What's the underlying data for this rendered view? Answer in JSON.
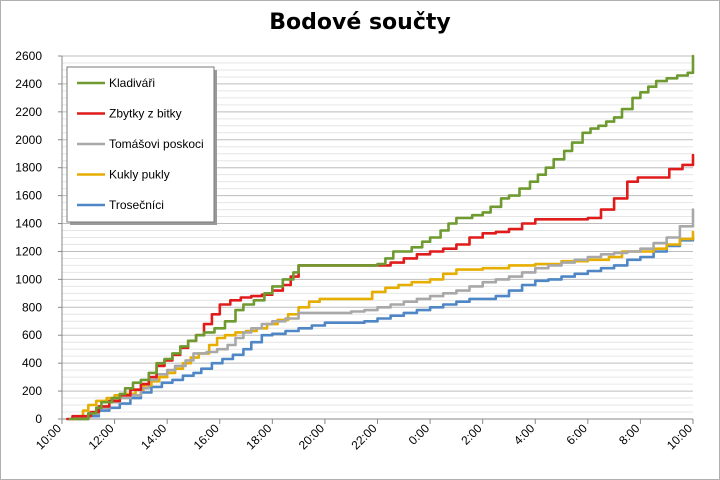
{
  "chart_data": {
    "type": "line",
    "title": "Bodové součty",
    "xlabel": "",
    "ylabel": "",
    "ylim": [
      0,
      2600
    ],
    "yticks": [
      0,
      200,
      400,
      600,
      800,
      1000,
      1200,
      1400,
      1600,
      1800,
      2000,
      2200,
      2400,
      2600
    ],
    "xlim_hours": [
      10,
      34
    ],
    "xticks": [
      "10:00",
      "12:00",
      "14:00",
      "16:00",
      "18:00",
      "20:00",
      "22:00",
      "0:00",
      "2:00",
      "4:00",
      "6:00",
      "8:00",
      "10:00"
    ],
    "grid": true,
    "legend_position": "top-left",
    "series": [
      {
        "name": "Kladiváři",
        "color": "#6e9a30",
        "points": [
          [
            10.3,
            0
          ],
          [
            10.9,
            0
          ],
          [
            11.0,
            40
          ],
          [
            11.3,
            80
          ],
          [
            11.5,
            120
          ],
          [
            11.9,
            150
          ],
          [
            12.2,
            180
          ],
          [
            12.4,
            220
          ],
          [
            12.7,
            260
          ],
          [
            13.0,
            280
          ],
          [
            13.3,
            330
          ],
          [
            13.6,
            400
          ],
          [
            13.9,
            430
          ],
          [
            14.2,
            470
          ],
          [
            14.5,
            520
          ],
          [
            14.8,
            560
          ],
          [
            15.1,
            600
          ],
          [
            15.4,
            620
          ],
          [
            15.8,
            650
          ],
          [
            16.2,
            700
          ],
          [
            16.6,
            780
          ],
          [
            16.9,
            820
          ],
          [
            17.3,
            850
          ],
          [
            17.7,
            900
          ],
          [
            18.0,
            950
          ],
          [
            18.4,
            1000
          ],
          [
            18.8,
            1050
          ],
          [
            19.0,
            1100
          ],
          [
            20.5,
            1100
          ],
          [
            22.0,
            1110
          ],
          [
            22.3,
            1150
          ],
          [
            22.6,
            1200
          ],
          [
            23.3,
            1230
          ],
          [
            23.7,
            1270
          ],
          [
            24.0,
            1300
          ],
          [
            24.4,
            1350
          ],
          [
            24.7,
            1400
          ],
          [
            25.0,
            1440
          ],
          [
            25.6,
            1460
          ],
          [
            26.0,
            1480
          ],
          [
            26.3,
            1520
          ],
          [
            26.7,
            1580
          ],
          [
            27.0,
            1600
          ],
          [
            27.4,
            1650
          ],
          [
            27.8,
            1700
          ],
          [
            28.1,
            1750
          ],
          [
            28.4,
            1800
          ],
          [
            28.7,
            1860
          ],
          [
            29.1,
            1920
          ],
          [
            29.4,
            1980
          ],
          [
            29.8,
            2050
          ],
          [
            30.1,
            2080
          ],
          [
            30.4,
            2100
          ],
          [
            30.7,
            2130
          ],
          [
            31.0,
            2160
          ],
          [
            31.3,
            2220
          ],
          [
            31.7,
            2300
          ],
          [
            32.0,
            2340
          ],
          [
            32.3,
            2380
          ],
          [
            32.6,
            2420
          ],
          [
            33.0,
            2440
          ],
          [
            33.4,
            2460
          ],
          [
            33.8,
            2480
          ],
          [
            34.0,
            2600
          ]
        ]
      },
      {
        "name": "Zbytky z bitky",
        "color": "#e01b1b",
        "points": [
          [
            10.2,
            0
          ],
          [
            10.4,
            20
          ],
          [
            10.8,
            20
          ],
          [
            11.1,
            50
          ],
          [
            11.4,
            90
          ],
          [
            11.8,
            130
          ],
          [
            12.2,
            170
          ],
          [
            12.6,
            210
          ],
          [
            13.0,
            250
          ],
          [
            13.3,
            300
          ],
          [
            13.6,
            380
          ],
          [
            13.9,
            420
          ],
          [
            14.2,
            460
          ],
          [
            14.5,
            510
          ],
          [
            14.8,
            560
          ],
          [
            15.1,
            600
          ],
          [
            15.4,
            680
          ],
          [
            15.7,
            750
          ],
          [
            16.0,
            820
          ],
          [
            16.4,
            850
          ],
          [
            16.8,
            870
          ],
          [
            17.2,
            880
          ],
          [
            17.6,
            890
          ],
          [
            18.0,
            920
          ],
          [
            18.4,
            960
          ],
          [
            18.7,
            1020
          ],
          [
            19.0,
            1100
          ],
          [
            22.0,
            1100
          ],
          [
            22.5,
            1120
          ],
          [
            23.0,
            1150
          ],
          [
            23.5,
            1180
          ],
          [
            24.0,
            1200
          ],
          [
            24.5,
            1220
          ],
          [
            25.0,
            1250
          ],
          [
            25.5,
            1300
          ],
          [
            26.0,
            1330
          ],
          [
            26.5,
            1340
          ],
          [
            27.0,
            1360
          ],
          [
            27.5,
            1400
          ],
          [
            28.0,
            1430
          ],
          [
            30.0,
            1440
          ],
          [
            30.5,
            1500
          ],
          [
            31.0,
            1580
          ],
          [
            31.5,
            1700
          ],
          [
            31.9,
            1730
          ],
          [
            32.8,
            1730
          ],
          [
            33.1,
            1790
          ],
          [
            33.6,
            1820
          ],
          [
            34.0,
            1890
          ]
        ]
      },
      {
        "name": "Tomášovi poskoci",
        "color": "#a8a8a8",
        "points": [
          [
            10.4,
            0
          ],
          [
            11.0,
            40
          ],
          [
            11.4,
            80
          ],
          [
            11.8,
            120
          ],
          [
            12.2,
            150
          ],
          [
            12.6,
            170
          ],
          [
            13.0,
            220
          ],
          [
            13.3,
            280
          ],
          [
            13.6,
            320
          ],
          [
            14.0,
            350
          ],
          [
            14.3,
            380
          ],
          [
            14.7,
            420
          ],
          [
            15.0,
            470
          ],
          [
            15.5,
            480
          ],
          [
            15.9,
            500
          ],
          [
            16.3,
            530
          ],
          [
            16.6,
            580
          ],
          [
            16.9,
            620
          ],
          [
            17.2,
            650
          ],
          [
            17.6,
            680
          ],
          [
            18.0,
            700
          ],
          [
            18.5,
            720
          ],
          [
            19.0,
            760
          ],
          [
            21.0,
            770
          ],
          [
            21.5,
            780
          ],
          [
            22.0,
            800
          ],
          [
            22.5,
            820
          ],
          [
            23.0,
            840
          ],
          [
            23.5,
            860
          ],
          [
            24.0,
            880
          ],
          [
            24.5,
            900
          ],
          [
            25.0,
            920
          ],
          [
            25.5,
            950
          ],
          [
            26.0,
            980
          ],
          [
            26.5,
            1000
          ],
          [
            27.0,
            1020
          ],
          [
            27.5,
            1050
          ],
          [
            28.0,
            1080
          ],
          [
            28.5,
            1100
          ],
          [
            29.0,
            1120
          ],
          [
            29.5,
            1140
          ],
          [
            30.0,
            1160
          ],
          [
            30.5,
            1180
          ],
          [
            31.0,
            1190
          ],
          [
            31.5,
            1200
          ],
          [
            32.0,
            1220
          ],
          [
            32.5,
            1260
          ],
          [
            33.0,
            1300
          ],
          [
            33.5,
            1380
          ],
          [
            34.0,
            1500
          ]
        ]
      },
      {
        "name": "Kukly pukly",
        "color": "#e6ae00",
        "points": [
          [
            10.5,
            0
          ],
          [
            10.8,
            60
          ],
          [
            11.0,
            100
          ],
          [
            11.3,
            130
          ],
          [
            11.7,
            150
          ],
          [
            12.0,
            170
          ],
          [
            12.4,
            180
          ],
          [
            12.8,
            210
          ],
          [
            13.1,
            240
          ],
          [
            13.4,
            270
          ],
          [
            13.7,
            300
          ],
          [
            14.0,
            330
          ],
          [
            14.3,
            360
          ],
          [
            14.6,
            400
          ],
          [
            14.9,
            440
          ],
          [
            15.2,
            470
          ],
          [
            15.6,
            530
          ],
          [
            15.9,
            580
          ],
          [
            16.2,
            600
          ],
          [
            16.6,
            620
          ],
          [
            17.0,
            630
          ],
          [
            17.4,
            650
          ],
          [
            17.8,
            680
          ],
          [
            18.2,
            710
          ],
          [
            18.6,
            750
          ],
          [
            19.0,
            800
          ],
          [
            19.4,
            840
          ],
          [
            19.8,
            860
          ],
          [
            21.5,
            860
          ],
          [
            21.8,
            910
          ],
          [
            22.3,
            940
          ],
          [
            22.8,
            960
          ],
          [
            23.3,
            980
          ],
          [
            24.0,
            1000
          ],
          [
            24.5,
            1040
          ],
          [
            25.0,
            1070
          ],
          [
            26.0,
            1080
          ],
          [
            27.0,
            1100
          ],
          [
            28.0,
            1110
          ],
          [
            29.0,
            1130
          ],
          [
            30.0,
            1140
          ],
          [
            30.8,
            1160
          ],
          [
            31.3,
            1200
          ],
          [
            32.0,
            1200
          ],
          [
            32.5,
            1220
          ],
          [
            33.0,
            1250
          ],
          [
            33.5,
            1290
          ],
          [
            34.0,
            1340
          ]
        ]
      },
      {
        "name": "Trosečníci",
        "color": "#4f86c6",
        "points": [
          [
            10.5,
            0
          ],
          [
            11.0,
            20
          ],
          [
            11.4,
            60
          ],
          [
            11.8,
            80
          ],
          [
            12.2,
            110
          ],
          [
            12.6,
            150
          ],
          [
            13.0,
            190
          ],
          [
            13.4,
            230
          ],
          [
            13.8,
            260
          ],
          [
            14.2,
            280
          ],
          [
            14.6,
            310
          ],
          [
            15.0,
            330
          ],
          [
            15.3,
            360
          ],
          [
            15.7,
            400
          ],
          [
            16.1,
            430
          ],
          [
            16.5,
            460
          ],
          [
            16.9,
            500
          ],
          [
            17.2,
            550
          ],
          [
            17.6,
            600
          ],
          [
            18.0,
            610
          ],
          [
            18.5,
            630
          ],
          [
            19.0,
            650
          ],
          [
            19.5,
            670
          ],
          [
            20.0,
            690
          ],
          [
            21.0,
            690
          ],
          [
            21.5,
            700
          ],
          [
            22.0,
            720
          ],
          [
            22.5,
            740
          ],
          [
            23.0,
            760
          ],
          [
            23.5,
            780
          ],
          [
            24.0,
            800
          ],
          [
            24.5,
            820
          ],
          [
            25.0,
            840
          ],
          [
            25.5,
            860
          ],
          [
            26.0,
            860
          ],
          [
            26.5,
            880
          ],
          [
            27.0,
            920
          ],
          [
            27.5,
            960
          ],
          [
            28.0,
            990
          ],
          [
            28.5,
            1000
          ],
          [
            29.0,
            1020
          ],
          [
            29.5,
            1040
          ],
          [
            30.0,
            1060
          ],
          [
            30.5,
            1080
          ],
          [
            31.0,
            1100
          ],
          [
            31.5,
            1140
          ],
          [
            32.0,
            1160
          ],
          [
            32.5,
            1200
          ],
          [
            33.0,
            1240
          ],
          [
            33.5,
            1280
          ],
          [
            34.0,
            1300
          ]
        ]
      }
    ]
  }
}
